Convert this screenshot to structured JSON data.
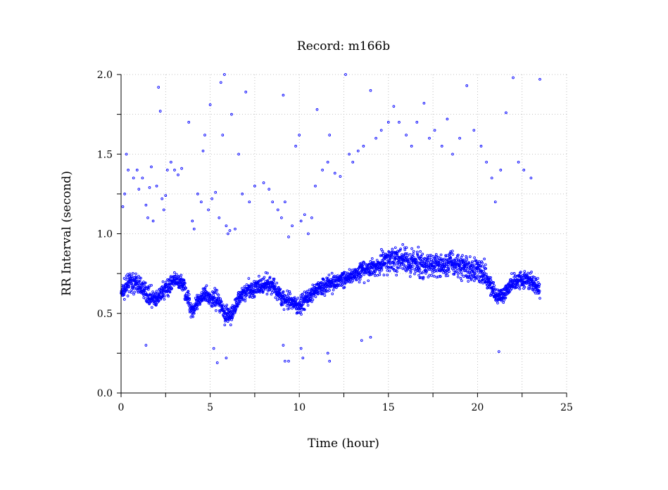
{
  "chart_data": {
    "type": "scatter",
    "title": "Record:  m166b",
    "xlabel": "Time (hour)",
    "ylabel": "RR Interval (second)",
    "xlim": [
      0,
      25
    ],
    "ylim": [
      0,
      2.0
    ],
    "x_ticks": [
      0,
      5,
      10,
      15,
      20,
      25
    ],
    "x_tick_labels": [
      "0",
      "5",
      "10",
      "15",
      "20",
      "25"
    ],
    "y_ticks": [
      0.0,
      0.5,
      1.0,
      1.5,
      2.0
    ],
    "y_tick_labels": [
      "0.0",
      "0.5",
      "1.0",
      "1.5",
      "2.0"
    ],
    "grid": true,
    "marker": "circle-open",
    "color": "#0000ff",
    "series": [
      {
        "trend": [
          [
            0.0,
            0.62
          ],
          [
            0.5,
            0.7
          ],
          [
            1.0,
            0.68
          ],
          [
            1.5,
            0.62
          ],
          [
            2.0,
            0.58
          ],
          [
            2.5,
            0.66
          ],
          [
            3.0,
            0.7
          ],
          [
            3.5,
            0.68
          ],
          [
            3.8,
            0.58
          ],
          [
            4.0,
            0.52
          ],
          [
            4.3,
            0.56
          ],
          [
            4.6,
            0.62
          ],
          [
            5.0,
            0.6
          ],
          [
            5.5,
            0.58
          ],
          [
            5.8,
            0.5
          ],
          [
            6.2,
            0.48
          ],
          [
            6.6,
            0.6
          ],
          [
            7.0,
            0.64
          ],
          [
            7.5,
            0.66
          ],
          [
            8.0,
            0.67
          ],
          [
            8.5,
            0.68
          ],
          [
            9.0,
            0.6
          ],
          [
            9.5,
            0.56
          ],
          [
            10.0,
            0.55
          ],
          [
            10.5,
            0.6
          ],
          [
            11.0,
            0.66
          ],
          [
            11.5,
            0.68
          ],
          [
            12.0,
            0.7
          ],
          [
            12.5,
            0.72
          ],
          [
            13.0,
            0.74
          ],
          [
            13.5,
            0.76
          ],
          [
            14.0,
            0.78
          ],
          [
            14.4,
            0.8
          ],
          [
            14.8,
            0.84
          ],
          [
            15.5,
            0.84
          ],
          [
            16.0,
            0.82
          ],
          [
            16.5,
            0.82
          ],
          [
            17.0,
            0.8
          ],
          [
            17.5,
            0.8
          ],
          [
            18.0,
            0.8
          ],
          [
            18.5,
            0.82
          ],
          [
            19.0,
            0.8
          ],
          [
            19.5,
            0.78
          ],
          [
            20.0,
            0.78
          ],
          [
            20.5,
            0.74
          ],
          [
            21.0,
            0.6
          ],
          [
            21.5,
            0.62
          ],
          [
            22.0,
            0.7
          ],
          [
            22.5,
            0.72
          ],
          [
            23.0,
            0.7
          ],
          [
            23.5,
            0.64
          ]
        ],
        "outliers": [
          [
            0.1,
            1.17
          ],
          [
            0.2,
            1.25
          ],
          [
            0.3,
            1.5
          ],
          [
            0.4,
            1.4
          ],
          [
            0.7,
            1.35
          ],
          [
            0.9,
            1.4
          ],
          [
            1.0,
            1.28
          ],
          [
            1.2,
            1.35
          ],
          [
            1.4,
            1.18
          ],
          [
            1.5,
            1.1
          ],
          [
            1.6,
            1.29
          ],
          [
            1.7,
            1.42
          ],
          [
            1.8,
            1.08
          ],
          [
            2.0,
            1.3
          ],
          [
            2.1,
            1.92
          ],
          [
            2.2,
            1.77
          ],
          [
            2.3,
            1.22
          ],
          [
            2.4,
            1.15
          ],
          [
            2.5,
            1.24
          ],
          [
            2.6,
            1.4
          ],
          [
            2.8,
            1.45
          ],
          [
            3.0,
            1.4
          ],
          [
            3.2,
            1.37
          ],
          [
            3.4,
            1.41
          ],
          [
            3.8,
            1.7
          ],
          [
            4.0,
            1.08
          ],
          [
            4.1,
            1.03
          ],
          [
            4.3,
            1.25
          ],
          [
            4.5,
            1.2
          ],
          [
            4.6,
            1.52
          ],
          [
            4.7,
            1.62
          ],
          [
            4.9,
            1.15
          ],
          [
            5.0,
            1.81
          ],
          [
            5.1,
            1.22
          ],
          [
            5.3,
            1.26
          ],
          [
            5.5,
            1.1
          ],
          [
            5.6,
            1.95
          ],
          [
            5.7,
            1.62
          ],
          [
            5.8,
            2.0
          ],
          [
            5.9,
            1.05
          ],
          [
            6.0,
            1.0
          ],
          [
            6.1,
            1.02
          ],
          [
            6.2,
            1.75
          ],
          [
            6.4,
            1.03
          ],
          [
            6.6,
            1.5
          ],
          [
            6.8,
            1.25
          ],
          [
            7.0,
            1.89
          ],
          [
            7.2,
            1.2
          ],
          [
            7.5,
            1.3
          ],
          [
            8.0,
            1.32
          ],
          [
            8.3,
            1.28
          ],
          [
            8.5,
            1.2
          ],
          [
            8.8,
            1.15
          ],
          [
            9.0,
            1.1
          ],
          [
            9.1,
            1.87
          ],
          [
            9.2,
            1.2
          ],
          [
            9.4,
            0.98
          ],
          [
            9.6,
            1.05
          ],
          [
            9.8,
            1.55
          ],
          [
            10.0,
            1.62
          ],
          [
            10.1,
            1.08
          ],
          [
            10.3,
            1.12
          ],
          [
            10.5,
            1.0
          ],
          [
            10.7,
            1.1
          ],
          [
            10.9,
            1.3
          ],
          [
            11.0,
            1.78
          ],
          [
            11.3,
            1.4
          ],
          [
            11.6,
            1.45
          ],
          [
            11.7,
            1.62
          ],
          [
            12.0,
            1.38
          ],
          [
            12.3,
            1.36
          ],
          [
            12.6,
            2.0
          ],
          [
            12.8,
            1.5
          ],
          [
            13.0,
            1.45
          ],
          [
            13.3,
            1.52
          ],
          [
            13.6,
            1.55
          ],
          [
            14.0,
            1.9
          ],
          [
            14.3,
            1.6
          ],
          [
            14.6,
            1.65
          ],
          [
            15.0,
            1.7
          ],
          [
            15.3,
            1.8
          ],
          [
            15.6,
            1.7
          ],
          [
            16.0,
            1.62
          ],
          [
            16.3,
            1.55
          ],
          [
            16.6,
            1.7
          ],
          [
            17.0,
            1.82
          ],
          [
            17.3,
            1.6
          ],
          [
            17.6,
            1.65
          ],
          [
            18.0,
            1.55
          ],
          [
            18.3,
            1.72
          ],
          [
            18.6,
            1.5
          ],
          [
            19.0,
            1.6
          ],
          [
            19.4,
            1.93
          ],
          [
            19.8,
            1.65
          ],
          [
            20.2,
            1.55
          ],
          [
            20.5,
            1.45
          ],
          [
            20.8,
            1.35
          ],
          [
            21.0,
            1.2
          ],
          [
            21.3,
            1.4
          ],
          [
            21.6,
            1.76
          ],
          [
            22.0,
            1.98
          ],
          [
            22.3,
            1.45
          ],
          [
            22.6,
            1.4
          ],
          [
            23.0,
            1.35
          ],
          [
            23.5,
            1.97
          ],
          [
            1.4,
            0.3
          ],
          [
            5.2,
            0.28
          ],
          [
            5.4,
            0.19
          ],
          [
            5.9,
            0.22
          ],
          [
            9.1,
            0.3
          ],
          [
            9.2,
            0.2
          ],
          [
            9.4,
            0.2
          ],
          [
            10.1,
            0.28
          ],
          [
            10.2,
            0.22
          ],
          [
            11.6,
            0.25
          ],
          [
            11.7,
            0.2
          ],
          [
            21.2,
            0.26
          ],
          [
            14.0,
            0.35
          ],
          [
            13.5,
            0.33
          ]
        ]
      }
    ]
  }
}
